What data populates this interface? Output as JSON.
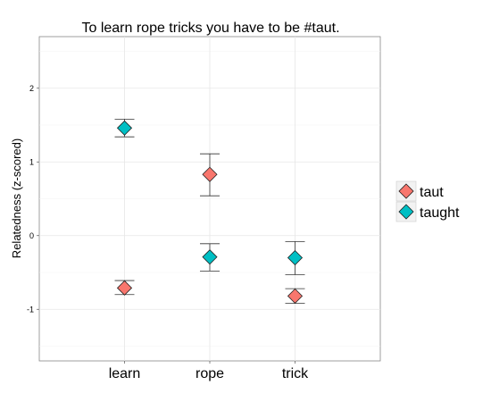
{
  "chart_data": {
    "type": "scatter",
    "title": "To learn rope tricks you have to be #taut.",
    "xlabel": "",
    "ylabel": "Relatedness (z-scored)",
    "categories": [
      "learn",
      "rope",
      "trick"
    ],
    "ylim": [
      -1.7,
      2.7
    ],
    "yticks": [
      -1,
      0,
      1,
      2
    ],
    "grid": true,
    "legend_position": "right",
    "series": [
      {
        "name": "taut",
        "color": "#F8766D",
        "values": [
          -0.71,
          0.83,
          -0.82
        ],
        "error_low": [
          -0.8,
          0.54,
          -0.92
        ],
        "error_high": [
          -0.61,
          1.11,
          -0.72
        ]
      },
      {
        "name": "taught",
        "color": "#00BFC4",
        "values": [
          1.46,
          -0.29,
          -0.3
        ],
        "error_low": [
          1.34,
          -0.48,
          -0.53
        ],
        "error_high": [
          1.58,
          -0.11,
          -0.08
        ]
      }
    ]
  }
}
